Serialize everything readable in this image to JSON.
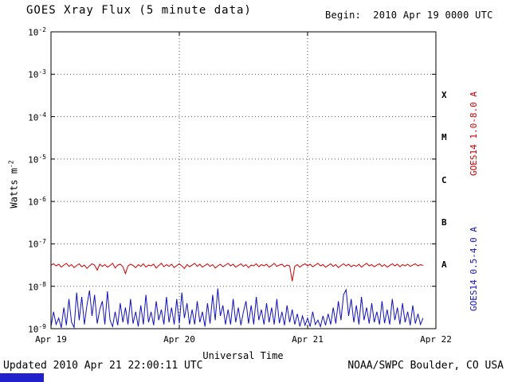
{
  "header": {
    "title": "GOES Xray Flux (5 minute data)",
    "begin_label": "Begin:  2010 Apr 19 0000 UTC"
  },
  "footer": {
    "updated": "Updated 2010 Apr 21 22:00:11 UTC",
    "source": "NOAA/SWPC Boulder, CO USA"
  },
  "colors": {
    "red_series": "#cc0000",
    "blue_series": "#1111bb",
    "grid": "#555555",
    "frame": "#000000",
    "footer_bar": "#2222cc"
  },
  "chart_data": {
    "type": "line",
    "title": "GOES Xray Flux (5 minute data)",
    "xlabel": "Universal Time",
    "ylabel_base": "Watts m",
    "ylabel_exp": "-2",
    "x_tick_labels": [
      "Apr 19",
      "Apr 20",
      "Apr 21",
      "Apr 22"
    ],
    "x_range_days": [
      0,
      3
    ],
    "y_log_range": [
      -9,
      -2
    ],
    "y_tick_exponents": [
      -2,
      -3,
      -4,
      -5,
      -6,
      -7,
      -8,
      -9
    ],
    "flare_classes": [
      {
        "label": "X",
        "log_center": -3.5
      },
      {
        "label": "M",
        "log_center": -4.5
      },
      {
        "label": "C",
        "log_center": -5.5
      },
      {
        "label": "B",
        "log_center": -6.5
      },
      {
        "label": "A",
        "log_center": -7.5
      }
    ],
    "grid": {
      "h_log_lines": [
        -3,
        -4,
        -5,
        -6,
        -7,
        -8
      ],
      "v_day_lines": [
        1,
        2
      ]
    },
    "legend_position": "right-rotated",
    "series": [
      {
        "name": "GOES14 1.0-8.0 A",
        "color": "#cc0000",
        "x_step_days": 0.02,
        "log_values": [
          -7.5,
          -7.47,
          -7.52,
          -7.48,
          -7.55,
          -7.5,
          -7.46,
          -7.53,
          -7.49,
          -7.56,
          -7.51,
          -7.47,
          -7.54,
          -7.5,
          -7.58,
          -7.52,
          -7.47,
          -7.5,
          -7.62,
          -7.48,
          -7.53,
          -7.49,
          -7.55,
          -7.51,
          -7.46,
          -7.57,
          -7.5,
          -7.48,
          -7.54,
          -7.7,
          -7.52,
          -7.48,
          -7.51,
          -7.56,
          -7.49,
          -7.53,
          -7.47,
          -7.55,
          -7.5,
          -7.52,
          -7.48,
          -7.57,
          -7.51,
          -7.46,
          -7.54,
          -7.49,
          -7.53,
          -7.48,
          -7.56,
          -7.51,
          -7.47,
          -7.52,
          -7.58,
          -7.49,
          -7.54,
          -7.5,
          -7.46,
          -7.53,
          -7.48,
          -7.55,
          -7.51,
          -7.47,
          -7.53,
          -7.49,
          -7.57,
          -7.52,
          -7.48,
          -7.54,
          -7.5,
          -7.46,
          -7.52,
          -7.48,
          -7.55,
          -7.51,
          -7.47,
          -7.53,
          -7.49,
          -7.56,
          -7.5,
          -7.52,
          -7.47,
          -7.54,
          -7.49,
          -7.52,
          -7.48,
          -7.55,
          -7.51,
          -7.46,
          -7.53,
          -7.5,
          -7.48,
          -7.54,
          -7.5,
          -7.52,
          -7.88,
          -7.53,
          -7.49,
          -7.55,
          -7.5,
          -7.47,
          -7.52,
          -7.48,
          -7.54,
          -7.5,
          -7.46,
          -7.52,
          -7.49,
          -7.55,
          -7.51,
          -7.47,
          -7.53,
          -7.49,
          -7.56,
          -7.51,
          -7.47,
          -7.52,
          -7.48,
          -7.54,
          -7.5,
          -7.53,
          -7.48,
          -7.55,
          -7.5,
          -7.46,
          -7.52,
          -7.49,
          -7.54,
          -7.5,
          -7.47,
          -7.53,
          -7.49,
          -7.55,
          -7.51,
          -7.47,
          -7.52,
          -7.48,
          -7.54,
          -7.49,
          -7.52,
          -7.48,
          -7.53,
          -7.5,
          -7.47,
          -7.52,
          -7.49,
          -7.51
        ]
      },
      {
        "name": "GOES14 0.5-4.0 A",
        "color": "#1111bb",
        "x_step_days": 0.02,
        "log_values": [
          -8.95,
          -8.6,
          -8.9,
          -8.75,
          -8.98,
          -8.5,
          -8.92,
          -8.3,
          -8.85,
          -8.97,
          -8.15,
          -8.8,
          -8.25,
          -8.9,
          -8.45,
          -8.1,
          -8.7,
          -8.2,
          -8.88,
          -8.55,
          -8.35,
          -8.9,
          -8.12,
          -8.8,
          -8.95,
          -8.6,
          -8.92,
          -8.4,
          -8.85,
          -8.5,
          -8.9,
          -8.3,
          -8.88,
          -8.6,
          -8.95,
          -8.45,
          -8.9,
          -8.2,
          -8.85,
          -8.6,
          -8.92,
          -8.35,
          -8.8,
          -8.55,
          -8.9,
          -8.25,
          -8.85,
          -8.5,
          -8.9,
          -8.3,
          -8.88,
          -8.15,
          -8.75,
          -8.4,
          -8.9,
          -8.55,
          -8.9,
          -8.35,
          -8.85,
          -8.6,
          -8.95,
          -8.4,
          -8.88,
          -8.2,
          -8.8,
          -8.05,
          -8.7,
          -8.45,
          -8.9,
          -8.55,
          -8.9,
          -8.3,
          -8.85,
          -8.5,
          -8.92,
          -8.6,
          -8.35,
          -8.88,
          -8.45,
          -8.9,
          -8.25,
          -8.8,
          -8.55,
          -8.9,
          -8.4,
          -8.85,
          -8.5,
          -8.9,
          -8.3,
          -8.87,
          -8.6,
          -8.92,
          -8.45,
          -8.85,
          -8.55,
          -8.9,
          -8.65,
          -8.95,
          -8.7,
          -8.92,
          -8.75,
          -8.95,
          -8.6,
          -8.9,
          -8.8,
          -8.95,
          -8.7,
          -8.92,
          -8.65,
          -8.9,
          -8.5,
          -8.88,
          -8.35,
          -8.8,
          -8.2,
          -8.08,
          -8.7,
          -8.3,
          -8.85,
          -8.45,
          -8.9,
          -8.25,
          -8.8,
          -8.5,
          -8.88,
          -8.4,
          -8.85,
          -8.6,
          -8.9,
          -8.35,
          -8.87,
          -8.55,
          -8.9,
          -8.3,
          -8.8,
          -8.5,
          -8.9,
          -8.4,
          -8.85,
          -8.6,
          -8.92,
          -8.45,
          -8.88,
          -8.65,
          -8.9,
          -8.75
        ]
      }
    ]
  }
}
